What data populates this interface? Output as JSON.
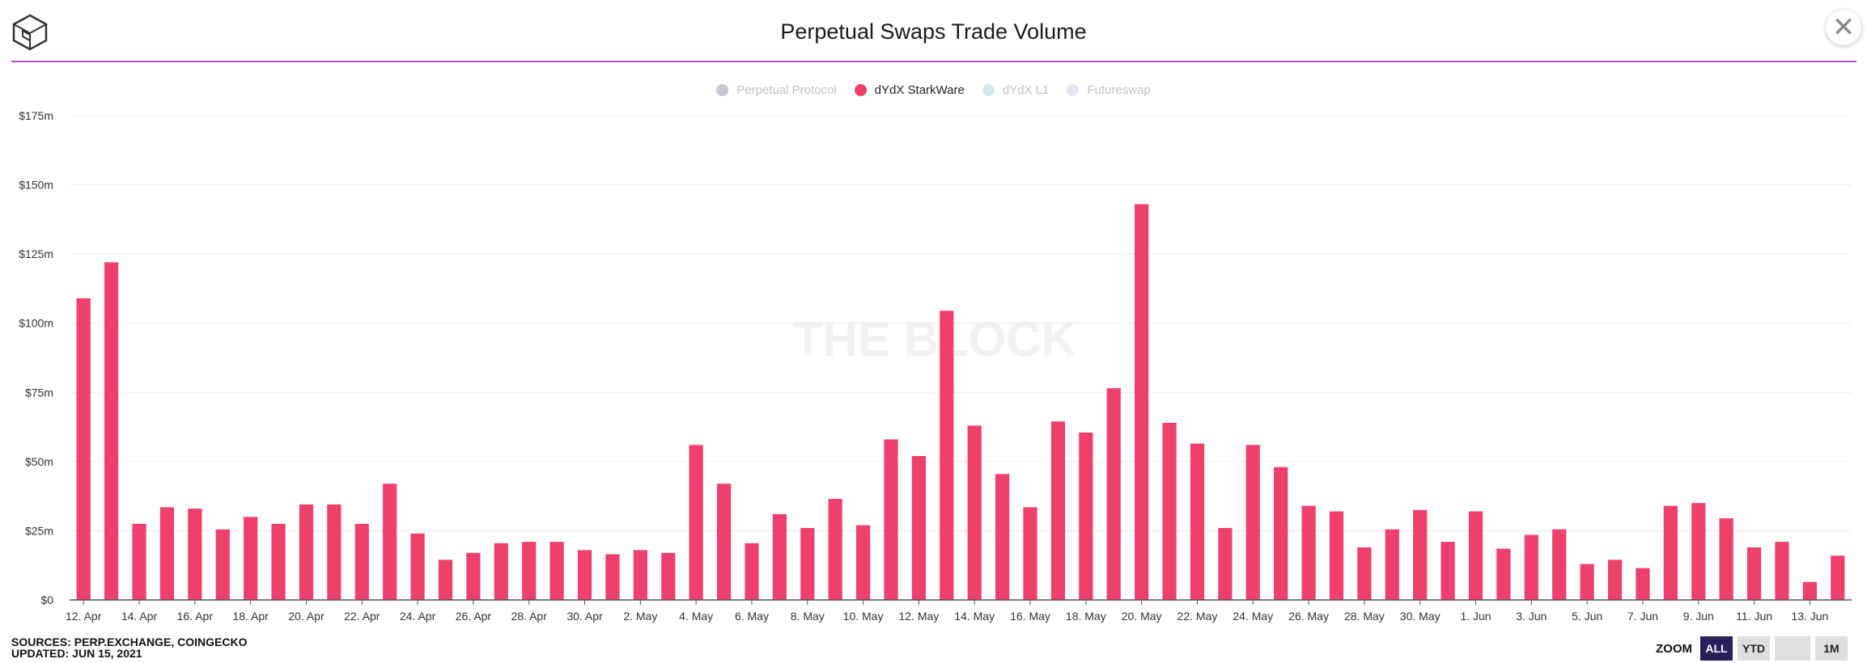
{
  "header": {
    "title": "Perpetual Swaps Trade Volume",
    "close_label": "✕"
  },
  "legend": [
    {
      "name": "Perpetual Protocol",
      "color": "#c8c8d2",
      "active": false
    },
    {
      "name": "dYdX StarkWare",
      "color": "#ee406c",
      "active": true
    },
    {
      "name": "dYdX L1",
      "color": "#cdebea",
      "active": false
    },
    {
      "name": "Futureswap",
      "color": "#e6e4f0",
      "active": false
    }
  ],
  "watermark": "THE BLOCK",
  "footer": {
    "sources": "SOURCES: PERP.EXCHANGE, COINGECKO",
    "updated": "UPDATED: JUN 15, 2021"
  },
  "zoom": {
    "label": "ZOOM",
    "buttons": [
      {
        "label": "ALL",
        "active": true
      },
      {
        "label": "YTD",
        "active": false
      },
      {
        "label": "",
        "active": false
      },
      {
        "label": "1M",
        "active": false
      }
    ]
  },
  "chart_data": {
    "type": "bar",
    "title": "Perpetual Swaps Trade Volume",
    "xlabel": "",
    "ylabel": "",
    "ylim": [
      0,
      175
    ],
    "yticks": [
      0,
      25,
      50,
      75,
      100,
      125,
      150,
      175
    ],
    "ytick_labels": [
      "$0",
      "$25m",
      "$50m",
      "$75m",
      "$100m",
      "$125m",
      "$150m",
      "$175m"
    ],
    "xtick_labels": [
      "12. Apr",
      "14. Apr",
      "16. Apr",
      "18. Apr",
      "20. Apr",
      "22. Apr",
      "24. Apr",
      "26. Apr",
      "28. Apr",
      "30. Apr",
      "2. May",
      "4. May",
      "6. May",
      "8. May",
      "10. May",
      "12. May",
      "14. May",
      "16. May",
      "18. May",
      "20. May",
      "22. May",
      "24. May",
      "26. May",
      "28. May",
      "30. May",
      "1. Jun",
      "3. Jun",
      "5. Jun",
      "7. Jun",
      "9. Jun",
      "11. Jun",
      "13. Jun"
    ],
    "grid": true,
    "legend_position": "top-center",
    "categories": [
      "12 Apr",
      "13 Apr",
      "14 Apr",
      "15 Apr",
      "16 Apr",
      "17 Apr",
      "18 Apr",
      "19 Apr",
      "20 Apr",
      "21 Apr",
      "22 Apr",
      "23 Apr",
      "24 Apr",
      "25 Apr",
      "26 Apr",
      "27 Apr",
      "28 Apr",
      "29 Apr",
      "30 Apr",
      "1 May",
      "2 May",
      "3 May",
      "4 May",
      "5 May",
      "6 May",
      "7 May",
      "8 May",
      "9 May",
      "10 May",
      "11 May",
      "12 May",
      "13 May",
      "14 May",
      "15 May",
      "16 May",
      "17 May",
      "18 May",
      "19 May",
      "20 May",
      "21 May",
      "22 May",
      "23 May",
      "24 May",
      "25 May",
      "26 May",
      "27 May",
      "28 May",
      "29 May",
      "30 May",
      "31 May",
      "1 Jun",
      "2 Jun",
      "3 Jun",
      "4 Jun",
      "5 Jun",
      "6 Jun",
      "7 Jun",
      "8 Jun",
      "9 Jun",
      "10 Jun",
      "11 Jun",
      "12 Jun",
      "13 Jun",
      "14 Jun"
    ],
    "series": [
      {
        "name": "dYdX StarkWare",
        "color": "#ee406c",
        "values": [
          109,
          122,
          27.5,
          33.5,
          33,
          25.5,
          30,
          27.5,
          34.5,
          34.5,
          27.5,
          42,
          24,
          14.5,
          17,
          20.5,
          21,
          21,
          18,
          16.5,
          18,
          17,
          56,
          42,
          20.5,
          31,
          26,
          36.5,
          27,
          58,
          52,
          104.5,
          63,
          45.5,
          33.5,
          64.5,
          60.5,
          76.5,
          143,
          64,
          56.5,
          26,
          56,
          48,
          34,
          32,
          19,
          25.5,
          32.5,
          21,
          32,
          18.5,
          23.5,
          25.5,
          13,
          14.5,
          11.5,
          34,
          35,
          29.5,
          19,
          21,
          6.5,
          16
        ]
      }
    ]
  }
}
